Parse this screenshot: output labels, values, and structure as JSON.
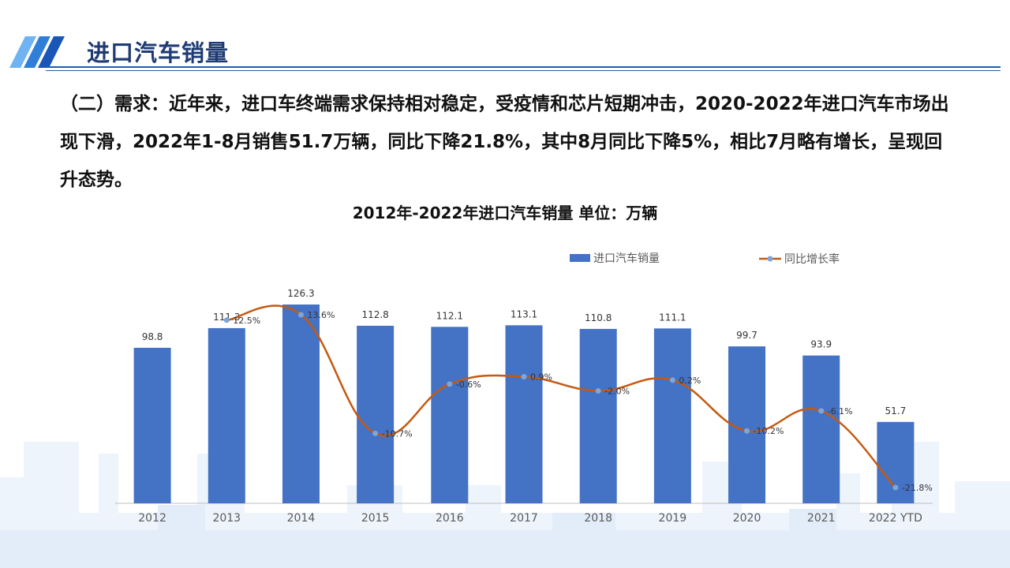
{
  "page": {
    "title": "进口汽车销量",
    "body": "（二）需求：近年来，进口车终端需求保持相对稳定，受疫情和芯片短期冲击，2020-2022年进口汽车市场出现下滑，2022年1-8月销售51.7万辆，同比下降21.8%，其中8月同比下降5%，相比7月略有增长，呈现回升态势。"
  },
  "colors": {
    "bar": "#4472c4",
    "line": "#c55a11",
    "point": "#7ea6d9",
    "title_text": "#1f3b73",
    "accent": "#1f5fa8"
  },
  "chart_data": {
    "type": "bar",
    "title": "2012年-2022年进口汽车销量 单位：万辆",
    "categories": [
      "2012",
      "2013",
      "2014",
      "2015",
      "2016",
      "2017",
      "2018",
      "2019",
      "2020",
      "2021",
      "2022 YTD"
    ],
    "series": [
      {
        "name": "进口汽车销量",
        "type": "bar",
        "values": [
          98.8,
          111.3,
          126.3,
          112.8,
          112.1,
          113.1,
          110.8,
          111.1,
          99.7,
          93.9,
          51.7
        ],
        "labels": [
          "98.8",
          "111.3",
          "126.3",
          "112.8",
          "112.1",
          "113.1",
          "110.8",
          "111.1",
          "99.7",
          "93.9",
          "51.7"
        ]
      },
      {
        "name": "同比增长率",
        "type": "line",
        "values": [
          null,
          12.5,
          13.6,
          -10.7,
          -0.6,
          0.9,
          -2.0,
          0.2,
          -10.2,
          -6.1,
          -21.8
        ],
        "labels": [
          "",
          "12.5%",
          "13.6%",
          "-10.7%",
          "-0.6%",
          "0.9%",
          "-2.0%",
          "0.2%",
          "-10.2%",
          "-6.1%",
          "-21.8%"
        ]
      }
    ],
    "legend_position": "top-center",
    "grid": false
  }
}
